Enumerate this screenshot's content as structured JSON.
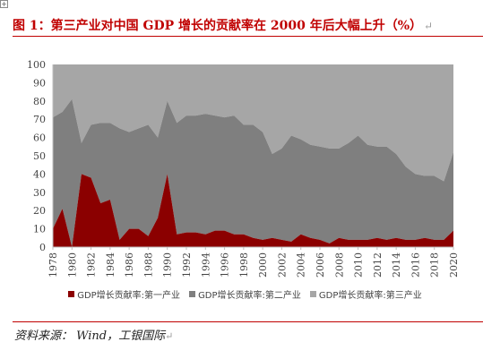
{
  "header": {
    "title": "图 1：第三产业对中国 GDP 增长的贡献率在 2000 年后大幅上升（%）"
  },
  "footer": {
    "source": "资料来源： Wind，工银国际"
  },
  "colors": {
    "primary": "#8b0000",
    "secondary": "#7f7f7f",
    "tertiary": "#a6a6a6",
    "plot_bg": "#ffffff",
    "title": "#c00000"
  },
  "chart_data": {
    "type": "area",
    "stacked": true,
    "title": "",
    "xlabel": "",
    "ylabel": "",
    "ylim": [
      0,
      100
    ],
    "yticks": [
      0,
      10,
      20,
      30,
      40,
      50,
      60,
      70,
      80,
      90,
      100
    ],
    "xticks": [
      "1978",
      "1980",
      "1982",
      "1984",
      "1986",
      "1988",
      "1990",
      "1992",
      "1994",
      "1996",
      "1998",
      "2000",
      "2002",
      "2004",
      "2006",
      "2008",
      "2010",
      "2012",
      "2014",
      "2016",
      "2018",
      "2020"
    ],
    "grid": false,
    "legend_position": "bottom",
    "x": [
      1978,
      1979,
      1980,
      1981,
      1982,
      1983,
      1984,
      1985,
      1986,
      1987,
      1988,
      1989,
      1990,
      1991,
      1992,
      1993,
      1994,
      1995,
      1996,
      1997,
      1998,
      1999,
      2000,
      2001,
      2002,
      2003,
      2004,
      2005,
      2006,
      2007,
      2008,
      2009,
      2010,
      2011,
      2012,
      2013,
      2014,
      2015,
      2016,
      2017,
      2018,
      2019,
      2020
    ],
    "series": [
      {
        "name": "GDP增长贡献率:第一产业",
        "values": [
          10,
          21,
          0,
          40,
          38,
          24,
          26,
          4,
          10,
          10,
          6,
          16,
          40,
          7,
          8,
          8,
          7,
          9,
          9,
          7,
          7,
          5,
          4,
          5,
          4,
          3,
          7,
          5,
          4,
          2,
          5,
          4,
          4,
          4,
          5,
          4,
          5,
          4,
          4,
          5,
          4,
          4,
          9
        ]
      },
      {
        "name": "GDP增长贡献率:第二产业",
        "values": [
          61,
          53,
          81,
          17,
          29,
          44,
          42,
          61,
          53,
          55,
          61,
          44,
          40,
          61,
          64,
          64,
          66,
          63,
          62,
          65,
          60,
          62,
          59,
          46,
          50,
          58,
          52,
          51,
          51,
          52,
          49,
          53,
          57,
          52,
          50,
          51,
          46,
          40,
          36,
          34,
          35,
          32,
          43
        ]
      },
      {
        "name": "GDP增长贡献率:第三产业",
        "values": [
          29,
          26,
          19,
          43,
          33,
          32,
          32,
          35,
          37,
          35,
          33,
          40,
          20,
          32,
          28,
          28,
          27,
          28,
          29,
          28,
          33,
          33,
          37,
          49,
          46,
          39,
          41,
          44,
          45,
          46,
          46,
          43,
          39,
          44,
          45,
          45,
          49,
          56,
          60,
          61,
          61,
          64,
          48
        ]
      }
    ]
  }
}
